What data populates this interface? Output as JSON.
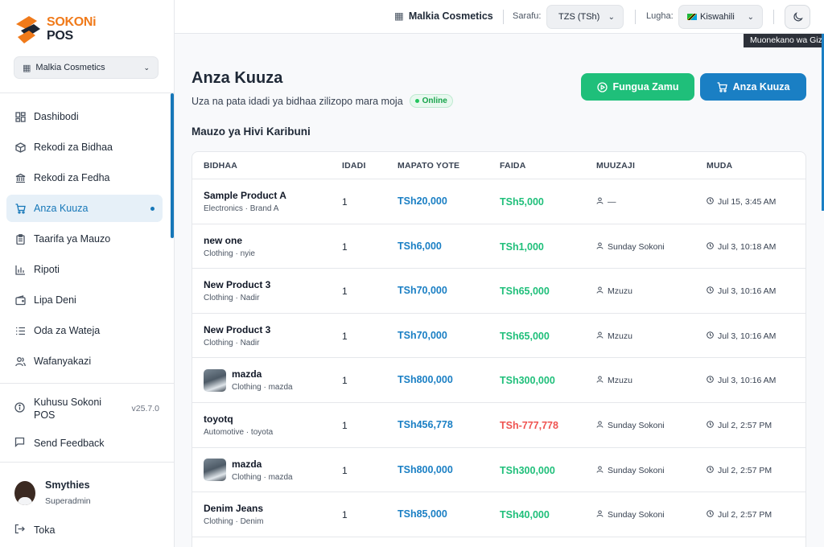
{
  "brand": {
    "line1": "SOKONi",
    "line2": "POS"
  },
  "sidebar": {
    "store": "Malkia Cosmetics",
    "items": [
      {
        "label": "Dashibodi",
        "icon": "dashboard-icon"
      },
      {
        "label": "Rekodi za Bidhaa",
        "icon": "box-icon"
      },
      {
        "label": "Rekodi za Fedha",
        "icon": "bank-icon"
      },
      {
        "label": "Anza Kuuza",
        "icon": "cart-icon"
      },
      {
        "label": "Taarifa ya Mauzo",
        "icon": "clipboard-icon"
      },
      {
        "label": "Ripoti",
        "icon": "bar-chart-icon"
      },
      {
        "label": "Lipa Deni",
        "icon": "wallet-icon"
      },
      {
        "label": "Oda za Wateja",
        "icon": "list-icon"
      },
      {
        "label": "Wafanyakazi",
        "icon": "users-icon"
      }
    ],
    "about": "Kuhusu Sokoni POS",
    "version": "v25.7.0",
    "feedback": "Send Feedback",
    "user": {
      "name": "Smythies",
      "role": "Superadmin"
    },
    "logout": "Toka"
  },
  "topbar": {
    "store": "Malkia Cosmetics",
    "currency_label": "Sarafu:",
    "currency_value": "TZS (TSh)",
    "language_label": "Lugha:",
    "language_value": "Kiswahili",
    "tooltip": "Muonekano wa Giza"
  },
  "page": {
    "title": "Anza Kuuza",
    "subtitle": "Uza na pata idadi ya bidhaa zilizopo mara moja",
    "status": "Online",
    "btn_shift": "Fungua Zamu",
    "btn_sell": "Anza Kuuza",
    "section": "Mauzo ya Hivi Karibuni"
  },
  "table": {
    "headers": {
      "product": "BIDHAA",
      "qty": "IDADI",
      "revenue": "MAPATO YOTE",
      "profit": "FAIDA",
      "seller": "MUUZAJI",
      "time": "MUDA"
    },
    "rows": [
      {
        "name": "Sample Product A",
        "meta": "Electronics · Brand A",
        "qty": "1",
        "revenue": "TSh20,000",
        "profit": "TSh5,000",
        "seller": "—",
        "time": "Jul 15, 3:45 AM",
        "thumb": false,
        "neg": false
      },
      {
        "name": "new one",
        "meta": "Clothing · nyie",
        "qty": "1",
        "revenue": "TSh6,000",
        "profit": "TSh1,000",
        "seller": "Sunday Sokoni",
        "time": "Jul 3, 10:18 AM",
        "thumb": false,
        "neg": false
      },
      {
        "name": "New Product 3",
        "meta": "Clothing · Nadir",
        "qty": "1",
        "revenue": "TSh70,000",
        "profit": "TSh65,000",
        "seller": "Mzuzu",
        "time": "Jul 3, 10:16 AM",
        "thumb": false,
        "neg": false
      },
      {
        "name": "New Product 3",
        "meta": "Clothing · Nadir",
        "qty": "1",
        "revenue": "TSh70,000",
        "profit": "TSh65,000",
        "seller": "Mzuzu",
        "time": "Jul 3, 10:16 AM",
        "thumb": false,
        "neg": false
      },
      {
        "name": "mazda",
        "meta": "Clothing · mazda",
        "qty": "1",
        "revenue": "TSh800,000",
        "profit": "TSh300,000",
        "seller": "Mzuzu",
        "time": "Jul 3, 10:16 AM",
        "thumb": true,
        "neg": false
      },
      {
        "name": "toyotq",
        "meta": "Automotive · toyota",
        "qty": "1",
        "revenue": "TSh456,778",
        "profit": "TSh-777,778",
        "seller": "Sunday Sokoni",
        "time": "Jul 2, 2:57 PM",
        "thumb": false,
        "neg": true
      },
      {
        "name": "mazda",
        "meta": "Clothing · mazda",
        "qty": "1",
        "revenue": "TSh800,000",
        "profit": "TSh300,000",
        "seller": "Sunday Sokoni",
        "time": "Jul 2, 2:57 PM",
        "thumb": true,
        "neg": false
      },
      {
        "name": "Denim Jeans",
        "meta": "Clothing · Denim",
        "qty": "1",
        "revenue": "TSh85,000",
        "profit": "TSh40,000",
        "seller": "Sunday Sokoni",
        "time": "Jul 2, 2:57 PM",
        "thumb": false,
        "neg": false
      }
    ]
  },
  "colors": {
    "accent": "#1a7fc4",
    "success": "#1fbf7a",
    "danger": "#ef5350",
    "brand_orange": "#f07a1a"
  }
}
